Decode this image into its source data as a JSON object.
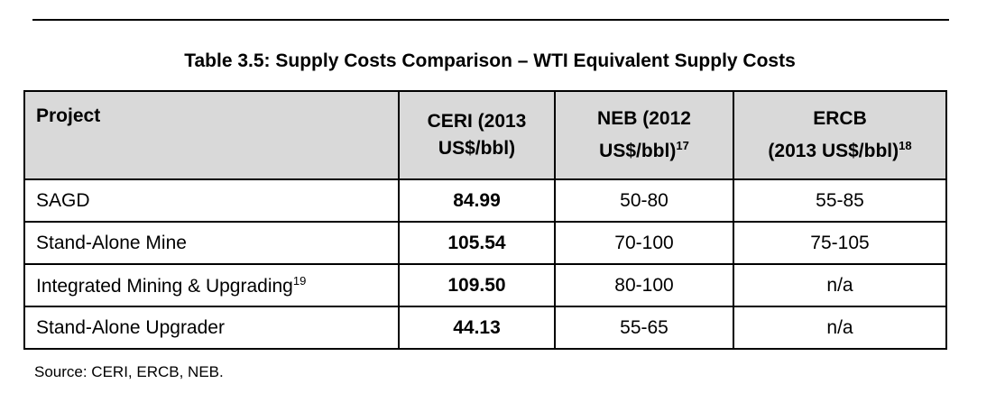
{
  "title": "Table 3.5:  Supply Costs Comparison – WTI Equivalent Supply Costs",
  "table": {
    "header": [
      {
        "lines": [
          "Project"
        ]
      },
      {
        "lines": [
          "CERI (2013",
          "US$/bbl)"
        ]
      },
      {
        "lines": [
          "NEB (2012",
          "US$/bbl)"
        ],
        "note": "17"
      },
      {
        "lines": [
          "ERCB",
          "(2013 US$/bbl)"
        ],
        "note": "18"
      }
    ],
    "rows": [
      {
        "cells": [
          "SAGD",
          "84.99",
          "50-80",
          "55-85"
        ]
      },
      {
        "cells": [
          "Stand-Alone Mine",
          "105.54",
          "70-100",
          "75-105"
        ]
      },
      {
        "cells": [
          "Integrated Mining & Upgrading",
          "109.50",
          "80-100",
          "n/a"
        ],
        "note": "19"
      },
      {
        "cells": [
          "Stand-Alone Upgrader",
          "44.13",
          "55-65",
          "n/a"
        ]
      }
    ]
  },
  "source": "Source: CERI, ERCB, NEB."
}
